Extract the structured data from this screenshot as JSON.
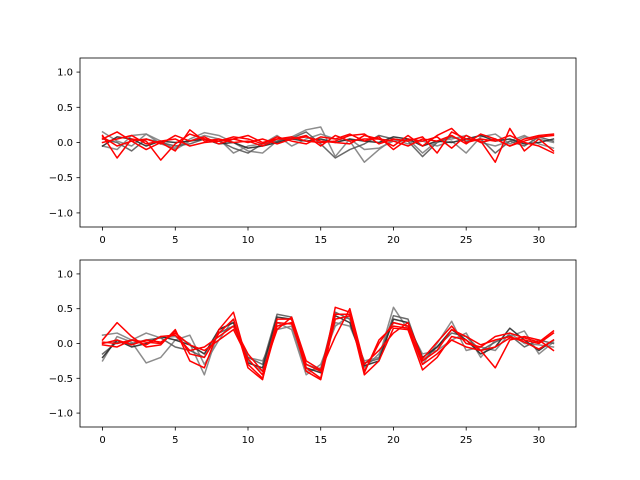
{
  "chart_data": [
    {
      "type": "line",
      "xlim": [
        -1.55,
        32.55
      ],
      "ylim": [
        -1.2,
        1.2
      ],
      "xticks": [
        0,
        5,
        10,
        15,
        20,
        25,
        30
      ],
      "yticks": [
        1.0,
        0.5,
        0.0,
        -0.5,
        -1.0
      ],
      "xtick_labels": [
        "0",
        "5",
        "10",
        "15",
        "20",
        "25",
        "30"
      ],
      "ytick_labels": [
        "1.0",
        "0.5",
        "0.0",
        "−0.5",
        "−1.0"
      ],
      "grid": false,
      "series": [
        {
          "color": "#808080",
          "values": [
            0.15,
            0.02,
            -0.05,
            0.12,
            -0.02,
            -0.08,
            0.05,
            0.14,
            0.1,
            0.0,
            -0.12,
            -0.15,
            0.02,
            0.08,
            0.18,
            0.22,
            -0.2,
            0.05,
            -0.1,
            -0.08,
            0.02,
            0.05,
            -0.15,
            0.02,
            0.05,
            0.1,
            0.0,
            -0.05,
            0.02,
            0.1,
            -0.02,
            -0.08
          ]
        },
        {
          "color": "#808080",
          "values": [
            -0.05,
            -0.1,
            0.1,
            0.12,
            0.02,
            -0.1,
            0.02,
            0.1,
            0.05,
            -0.15,
            -0.05,
            -0.02,
            0.1,
            -0.05,
            0.05,
            0.12,
            0.05,
            0.02,
            -0.28,
            -0.1,
            0.05,
            -0.02,
            0.02,
            -0.05,
            0.02,
            -0.15,
            0.08,
            0.12,
            -0.02,
            0.08,
            0.05,
            0.0
          ]
        },
        {
          "color": "#5a5a5a",
          "values": [
            0.05,
            0.0,
            -0.12,
            0.05,
            0.0,
            -0.05,
            -0.02,
            0.05,
            0.02,
            -0.08,
            -0.15,
            -0.02,
            0.02,
            0.06,
            0.15,
            -0.02,
            -0.22,
            -0.1,
            -0.02,
            0.1,
            0.05,
            0.02,
            -0.2,
            0.0,
            0.08,
            0.02,
            0.05,
            -0.15,
            0.02,
            -0.05,
            0.08,
            0.02
          ]
        },
        {
          "color": "#2a2a2a",
          "values": [
            -0.05,
            0.08,
            0.05,
            -0.05,
            0.02,
            0.0,
            0.02,
            0.05,
            -0.02,
            0.0,
            -0.08,
            -0.05,
            0.0,
            0.05,
            0.02,
            0.05,
            0.0,
            0.05,
            0.02,
            0.0,
            0.08,
            0.05,
            -0.05,
            0.02,
            0.0,
            0.05,
            0.1,
            0.02,
            0.05,
            -0.02,
            0.0,
            0.05
          ]
        },
        {
          "color": "#ff0000",
          "values": [
            0.1,
            -0.22,
            0.05,
            0.02,
            -0.25,
            -0.02,
            0.12,
            0.05,
            0.02,
            0.05,
            0.1,
            0.0,
            0.05,
            0.08,
            0.02,
            0.0,
            0.02,
            0.1,
            0.12,
            -0.02,
            0.05,
            0.02,
            0.08,
            -0.15,
            0.15,
            0.05,
            0.02,
            -0.28,
            0.2,
            -0.12,
            0.05,
            -0.12
          ]
        },
        {
          "color": "#ff0000",
          "values": [
            0.05,
            0.15,
            0.02,
            -0.1,
            0.0,
            -0.12,
            0.18,
            0.02,
            0.05,
            0.0,
            0.02,
            -0.05,
            0.05,
            0.05,
            0.1,
            -0.05,
            0.1,
            0.02,
            0.05,
            0.05,
            -0.05,
            0.1,
            -0.05,
            0.1,
            0.2,
            0.0,
            0.05,
            0.02,
            0.1,
            0.0,
            -0.05,
            -0.15
          ]
        },
        {
          "color": "#ff0000",
          "values": [
            0.0,
            0.05,
            0.1,
            -0.02,
            0.02,
            0.05,
            -0.05,
            0.0,
            0.02,
            0.08,
            0.05,
            -0.02,
            0.08,
            0.02,
            -0.02,
            0.08,
            0.05,
            0.12,
            0.02,
            0.08,
            -0.1,
            0.05,
            0.02,
            0.08,
            -0.08,
            0.1,
            0.0,
            0.05,
            -0.05,
            0.05,
            0.1,
            0.12
          ]
        },
        {
          "color": "#ff0000",
          "values": [
            0.08,
            -0.05,
            0.02,
            0.05,
            -0.02,
            0.1,
            0.02,
            0.08,
            -0.02,
            0.05,
            0.0,
            0.05,
            -0.02,
            0.05,
            0.08,
            0.02,
            0.0,
            -0.02,
            0.1,
            0.05,
            0.02,
            -0.05,
            0.05,
            0.02,
            0.1,
            -0.02,
            0.12,
            0.05,
            -0.05,
            0.02,
            0.08,
            0.1
          ]
        }
      ]
    },
    {
      "type": "line",
      "xlim": [
        -1.55,
        32.55
      ],
      "ylim": [
        -1.2,
        1.2
      ],
      "xticks": [
        0,
        5,
        10,
        15,
        20,
        25,
        30
      ],
      "yticks": [
        1.0,
        0.5,
        0.0,
        -0.5,
        -1.0
      ],
      "xtick_labels": [
        "0",
        "5",
        "10",
        "15",
        "20",
        "25",
        "30"
      ],
      "ytick_labels": [
        "1.0",
        "0.5",
        "0.0",
        "−0.5",
        "−1.0"
      ],
      "grid": false,
      "series": [
        {
          "color": "#808080",
          "values": [
            0.12,
            0.15,
            0.05,
            0.15,
            0.08,
            0.1,
            0.0,
            -0.45,
            0.2,
            0.3,
            -0.2,
            -0.25,
            0.2,
            0.25,
            -0.4,
            -0.35,
            0.3,
            0.25,
            -0.25,
            -0.2,
            0.52,
            0.2,
            -0.3,
            0.0,
            0.32,
            -0.1,
            -0.05,
            -0.1,
            0.15,
            0.0,
            -0.02,
            -0.05
          ]
        },
        {
          "color": "#808080",
          "values": [
            -0.25,
            0.1,
            0.02,
            -0.28,
            -0.2,
            0.05,
            0.12,
            -0.3,
            0.05,
            0.35,
            -0.25,
            -0.4,
            0.3,
            0.2,
            -0.45,
            -0.3,
            0.25,
            0.4,
            -0.35,
            -0.15,
            0.3,
            0.25,
            -0.15,
            -0.1,
            0.05,
            0.15,
            -0.2,
            0.05,
            0.1,
            0.18,
            -0.15,
            0.02
          ]
        },
        {
          "color": "#5a5a5a",
          "values": [
            -0.15,
            0.02,
            0.0,
            0.05,
            0.08,
            -0.05,
            -0.1,
            -0.2,
            0.15,
            0.25,
            -0.2,
            -0.3,
            0.42,
            0.38,
            -0.3,
            -0.38,
            0.45,
            0.35,
            -0.28,
            -0.22,
            0.4,
            0.35,
            -0.25,
            -0.05,
            0.15,
            0.1,
            -0.1,
            0.02,
            0.12,
            -0.05,
            0.05,
            0.0
          ]
        },
        {
          "color": "#2a2a2a",
          "values": [
            -0.2,
            0.05,
            -0.05,
            0.0,
            0.1,
            0.05,
            -0.02,
            -0.15,
            0.2,
            0.3,
            -0.28,
            -0.35,
            0.38,
            0.35,
            -0.35,
            -0.42,
            0.4,
            0.3,
            -0.32,
            -0.25,
            0.35,
            0.3,
            -0.2,
            -0.05,
            0.2,
            0.05,
            -0.15,
            -0.05,
            0.22,
            0.05,
            -0.1,
            0.05
          ]
        },
        {
          "color": "#ff0000",
          "values": [
            0.05,
            0.3,
            0.1,
            -0.05,
            -0.02,
            0.2,
            -0.25,
            -0.35,
            0.2,
            0.45,
            -0.3,
            -0.5,
            0.25,
            0.3,
            -0.35,
            -0.5,
            0.52,
            0.45,
            -0.4,
            0.0,
            0.3,
            0.25,
            -0.3,
            -0.15,
            0.05,
            -0.05,
            -0.1,
            -0.35,
            0.05,
            0.1,
            0.05,
            -0.1
          ]
        },
        {
          "color": "#ff0000",
          "values": [
            -0.02,
            -0.05,
            0.05,
            0.02,
            0.0,
            0.18,
            -0.15,
            -0.2,
            0.15,
            0.35,
            -0.35,
            -0.52,
            0.35,
            0.35,
            -0.4,
            -0.52,
            0.35,
            0.4,
            -0.45,
            -0.25,
            0.22,
            0.2,
            -0.38,
            -0.2,
            0.1,
            0.05,
            -0.1,
            -0.05,
            0.08,
            0.05,
            0.0,
            0.15
          ]
        },
        {
          "color": "#ff0000",
          "values": [
            0.02,
            0.0,
            0.05,
            -0.02,
            0.1,
            0.12,
            -0.1,
            -0.05,
            0.1,
            0.25,
            -0.15,
            -0.4,
            0.2,
            0.38,
            -0.25,
            -0.38,
            0.1,
            0.5,
            -0.3,
            -0.1,
            0.15,
            0.3,
            -0.22,
            0.02,
            0.25,
            0.0,
            -0.05,
            0.1,
            0.15,
            0.08,
            0.02,
            0.18
          ]
        },
        {
          "color": "#ff0000",
          "values": [
            0.0,
            0.05,
            -0.02,
            0.05,
            0.02,
            0.15,
            -0.02,
            -0.1,
            0.05,
            0.2,
            -0.22,
            -0.45,
            0.3,
            0.28,
            -0.3,
            -0.4,
            0.42,
            0.42,
            -0.42,
            0.05,
            0.25,
            0.22,
            -0.25,
            -0.1,
            0.2,
            0.1,
            -0.02,
            0.05,
            0.1,
            0.02,
            -0.08,
            0.05
          ]
        }
      ]
    }
  ]
}
